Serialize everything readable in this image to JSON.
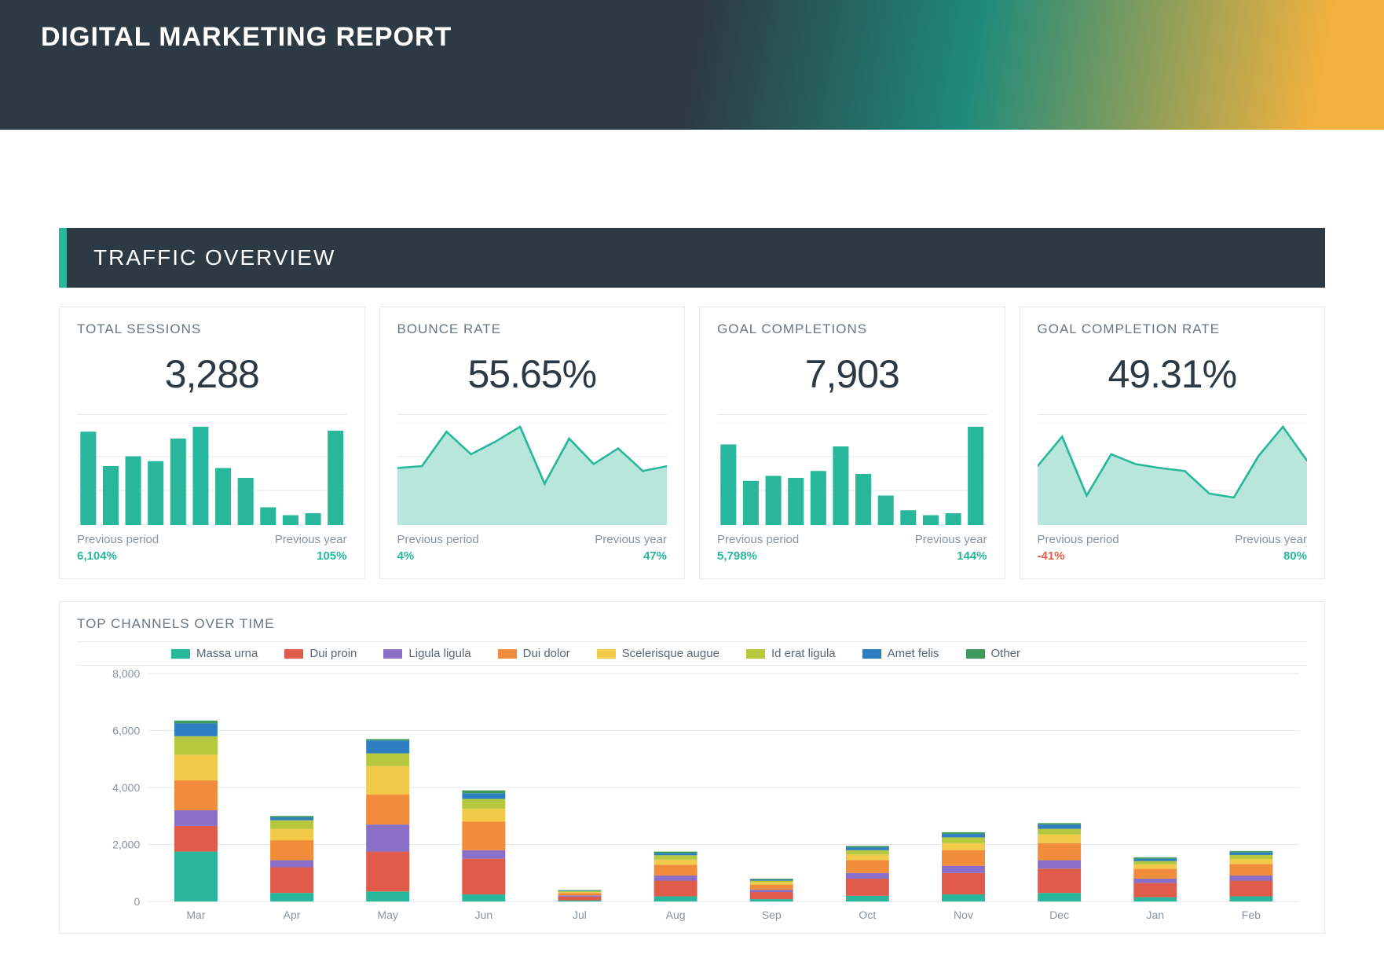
{
  "header": {
    "title": "DIGITAL MARKETING REPORT"
  },
  "section": {
    "title": "TRAFFIC OVERVIEW"
  },
  "colors": {
    "accent": "#28b79b",
    "accent_fill": "#b9e6dc",
    "text_dark": "#2d3943",
    "text_muted": "#8a949c",
    "border": "#e5e7e8",
    "positive": "#28b79b",
    "negative": "#e05b4a"
  },
  "kpis": [
    {
      "id": "total-sessions",
      "title": "TOTAL SESSIONS",
      "value": "3,288",
      "spark_type": "bar",
      "spark_values": [
        95,
        60,
        70,
        65,
        88,
        100,
        58,
        48,
        18,
        10,
        12,
        96
      ],
      "spark_ymax": 100,
      "prev_period": {
        "label": "Previous period",
        "value": "6,104%",
        "negative": false
      },
      "prev_year": {
        "label": "Previous year",
        "value": "105%",
        "negative": false
      }
    },
    {
      "id": "bounce-rate",
      "title": "BOUNCE RATE",
      "value": "55.65%",
      "spark_type": "area",
      "spark_values": [
        58,
        60,
        95,
        72,
        85,
        100,
        42,
        88,
        62,
        78,
        55,
        60
      ],
      "spark_ymax": 100,
      "prev_period": {
        "label": "Previous period",
        "value": "4%",
        "negative": false
      },
      "prev_year": {
        "label": "Previous year",
        "value": "47%",
        "negative": false
      }
    },
    {
      "id": "goal-completions",
      "title": "GOAL COMPLETIONS",
      "value": "7,903",
      "spark_type": "bar",
      "spark_values": [
        82,
        45,
        50,
        48,
        55,
        80,
        52,
        30,
        15,
        10,
        12,
        100
      ],
      "spark_ymax": 100,
      "prev_period": {
        "label": "Previous period",
        "value": "5,798%",
        "negative": false
      },
      "prev_year": {
        "label": "Previous year",
        "value": "144%",
        "negative": false
      }
    },
    {
      "id": "goal-completion-rate",
      "title": "GOAL COMPLETION RATE",
      "value": "49.31%",
      "spark_type": "area",
      "spark_values": [
        60,
        90,
        30,
        72,
        62,
        58,
        55,
        32,
        28,
        70,
        100,
        65
      ],
      "spark_ymax": 100,
      "prev_period": {
        "label": "Previous period",
        "value": "-41%",
        "negative": true
      },
      "prev_year": {
        "label": "Previous year",
        "value": "80%",
        "negative": false
      }
    }
  ],
  "channels_chart": {
    "title": "TOP CHANNELS OVER TIME",
    "type": "stacked-bar",
    "ymax": 8000,
    "ytick_step": 2000,
    "categories": [
      "Mar",
      "Apr",
      "May",
      "Jun",
      "Jul",
      "Aug",
      "Sep",
      "Oct",
      "Nov",
      "Dec",
      "Jan",
      "Feb"
    ],
    "series": [
      {
        "name": "Massa urna",
        "color": "#28b79b"
      },
      {
        "name": "Dui proin",
        "color": "#e05b4a"
      },
      {
        "name": "Ligula ligula",
        "color": "#8a6fc9"
      },
      {
        "name": "Dui dolor",
        "color": "#f08c3a"
      },
      {
        "name": "Scelerisque augue",
        "color": "#f3c94a"
      },
      {
        "name": "Id erat ligula",
        "color": "#b6c93e"
      },
      {
        "name": "Amet felis",
        "color": "#2e7fc1"
      },
      {
        "name": "Other",
        "color": "#3e9a5a"
      }
    ],
    "stacks": [
      [
        1750,
        900,
        550,
        1050,
        900,
        650,
        450,
        100
      ],
      [
        300,
        900,
        250,
        700,
        400,
        300,
        100,
        50
      ],
      [
        350,
        1400,
        950,
        1050,
        1000,
        450,
        450,
        50
      ],
      [
        250,
        1250,
        300,
        1000,
        450,
        350,
        200,
        100
      ],
      [
        40,
        130,
        40,
        80,
        40,
        30,
        20,
        20
      ],
      [
        180,
        550,
        180,
        380,
        180,
        150,
        80,
        50
      ],
      [
        80,
        250,
        80,
        180,
        80,
        60,
        40,
        30
      ],
      [
        200,
        600,
        200,
        450,
        200,
        150,
        100,
        50
      ],
      [
        250,
        750,
        250,
        550,
        250,
        200,
        120,
        60
      ],
      [
        300,
        850,
        300,
        600,
        300,
        200,
        150,
        50
      ],
      [
        150,
        500,
        150,
        350,
        150,
        120,
        80,
        50
      ],
      [
        180,
        550,
        180,
        400,
        180,
        140,
        90,
        50
      ]
    ],
    "bar_width_ratio": 0.45
  }
}
